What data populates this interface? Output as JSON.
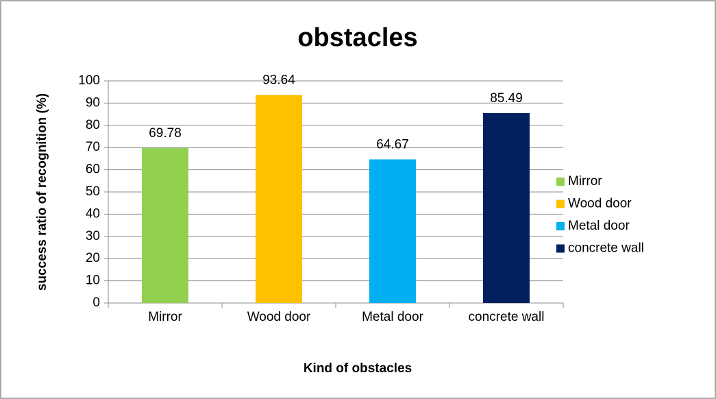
{
  "chart_data": {
    "type": "bar",
    "title": "obstacles",
    "x_label": "Kind of obstacles",
    "y_label": "success ratio of recognition (%)",
    "categories": [
      "Mirror",
      "Wood door",
      "Metal door",
      "concrete wall"
    ],
    "values": [
      69.78,
      93.64,
      64.67,
      85.49
    ],
    "colors": [
      "#92d050",
      "#ffc000",
      "#00b0f0",
      "#002060"
    ],
    "ylim": [
      0,
      100
    ],
    "yticks": [
      0,
      10,
      20,
      30,
      40,
      50,
      60,
      70,
      80,
      90,
      100
    ],
    "grid": true,
    "legend": "right"
  }
}
